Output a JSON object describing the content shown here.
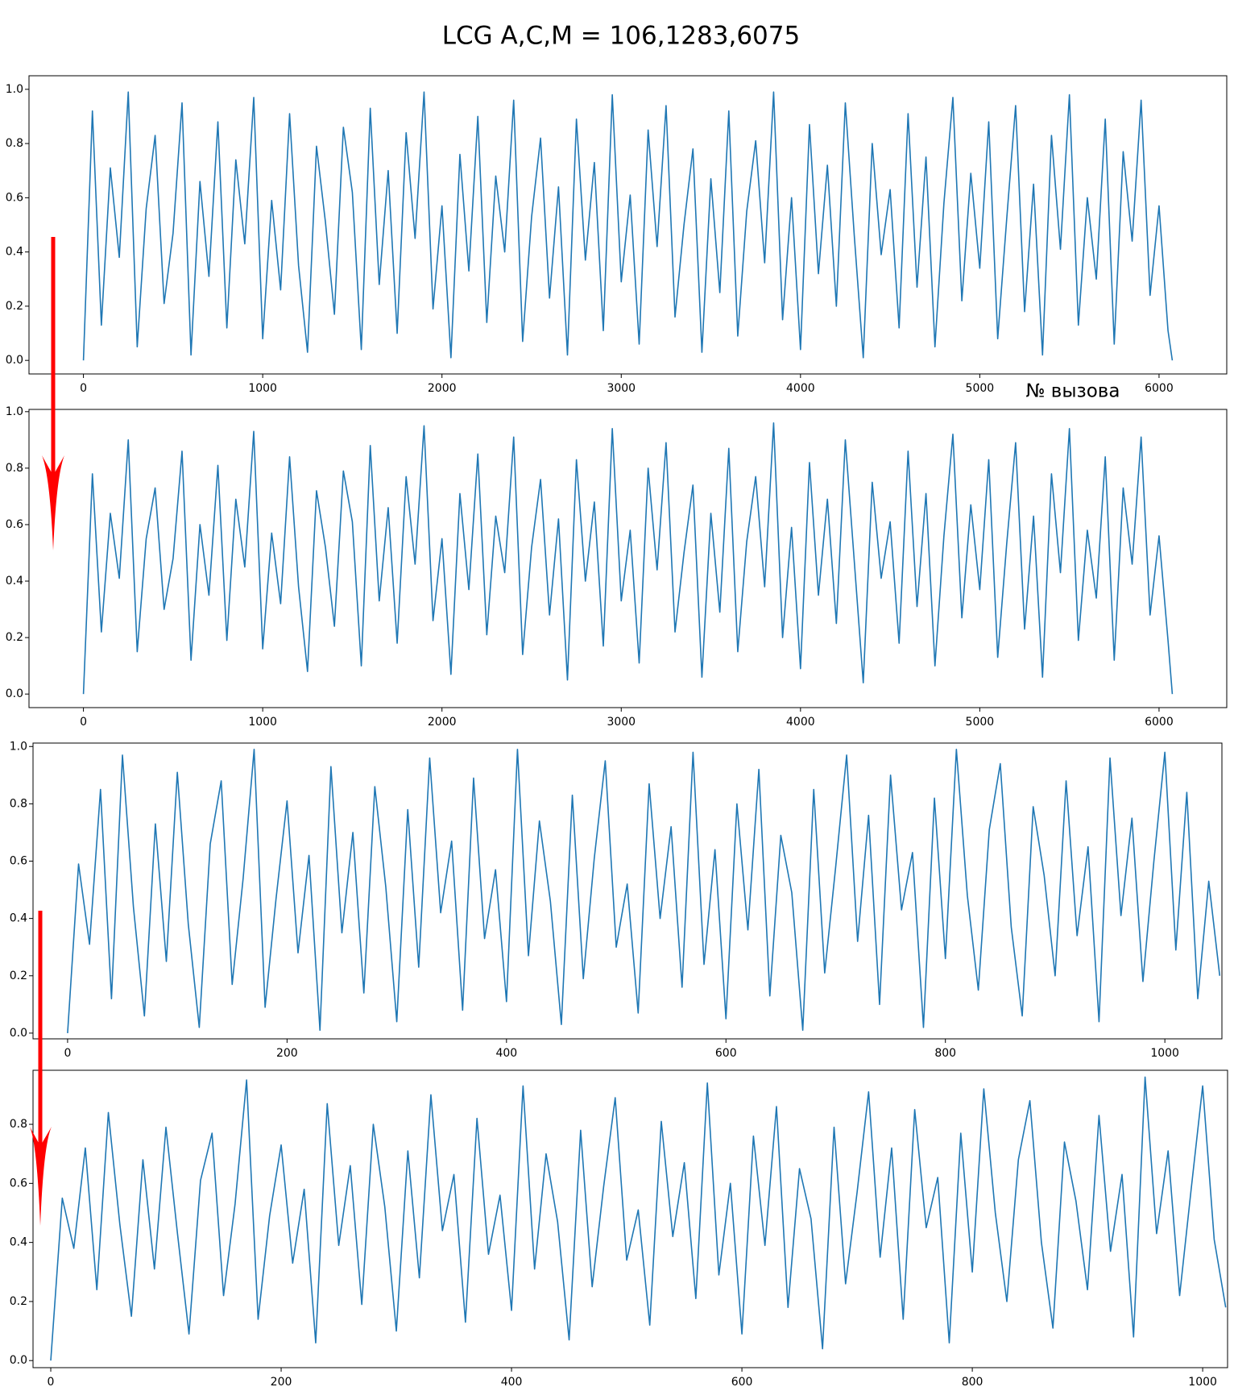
{
  "title": "LCG  A,C,M = 106,1283,6075",
  "chart_data": [
    {
      "type": "line",
      "xlabel": "№ вызова",
      "x": [
        0,
        50,
        100,
        150,
        200,
        250,
        300,
        350,
        400,
        450,
        500,
        550,
        600,
        650,
        700,
        750,
        800,
        850,
        900,
        950,
        1000,
        1050,
        1100,
        1150,
        1200,
        1250,
        1300,
        1350,
        1400,
        1450,
        1500,
        1550,
        1600,
        1650,
        1700,
        1750,
        1800,
        1850,
        1900,
        1950,
        2000,
        2050,
        2100,
        2150,
        2200,
        2250,
        2300,
        2350,
        2400,
        2450,
        2500,
        2550,
        2600,
        2650,
        2700,
        2750,
        2800,
        2850,
        2900,
        2950,
        3000,
        3050,
        3100,
        3150,
        3200,
        3250,
        3300,
        3350,
        3400,
        3450,
        3500,
        3550,
        3600,
        3650,
        3700,
        3750,
        3800,
        3850,
        3900,
        3950,
        4000,
        4050,
        4100,
        4150,
        4200,
        4250,
        4300,
        4350,
        4400,
        4450,
        4500,
        4550,
        4600,
        4650,
        4700,
        4750,
        4800,
        4850,
        4900,
        4950,
        5000,
        5050,
        5100,
        5150,
        5200,
        5250,
        5300,
        5350,
        5400,
        5450,
        5500,
        5550,
        5600,
        5650,
        5700,
        5750,
        5800,
        5850,
        5900,
        5950,
        6000,
        6050,
        6074
      ],
      "series": [
        {
          "color": "#1f77b4",
          "values": [
            0.0,
            0.92,
            0.13,
            0.71,
            0.38,
            0.99,
            0.05,
            0.56,
            0.83,
            0.21,
            0.47,
            0.95,
            0.02,
            0.66,
            0.31,
            0.88,
            0.12,
            0.74,
            0.43,
            0.97,
            0.08,
            0.59,
            0.26,
            0.91,
            0.35,
            0.03,
            0.79,
            0.51,
            0.17,
            0.86,
            0.62,
            0.04,
            0.93,
            0.28,
            0.7,
            0.1,
            0.84,
            0.45,
            0.99,
            0.19,
            0.57,
            0.01,
            0.76,
            0.33,
            0.9,
            0.14,
            0.68,
            0.4,
            0.96,
            0.07,
            0.53,
            0.82,
            0.23,
            0.64,
            0.02,
            0.89,
            0.37,
            0.73,
            0.11,
            0.98,
            0.29,
            0.61,
            0.06,
            0.85,
            0.42,
            0.94,
            0.16,
            0.5,
            0.78,
            0.03,
            0.67,
            0.25,
            0.92,
            0.09,
            0.55,
            0.81,
            0.36,
            0.99,
            0.15,
            0.6,
            0.04,
            0.87,
            0.32,
            0.72,
            0.2,
            0.95,
            0.46,
            0.01,
            0.8,
            0.39,
            0.63,
            0.12,
            0.91,
            0.27,
            0.75,
            0.05,
            0.58,
            0.97,
            0.22,
            0.69,
            0.34,
            0.88,
            0.08,
            0.52,
            0.94,
            0.18,
            0.65,
            0.02,
            0.83,
            0.41,
            0.98,
            0.13,
            0.6,
            0.3,
            0.89,
            0.06,
            0.77,
            0.44,
            0.96,
            0.24,
            0.57,
            0.11,
            0.0
          ]
        }
      ],
      "xlim": [
        -303.7,
        6377.7
      ],
      "ylim": [
        -0.05,
        1.05
      ],
      "xticks": [
        0,
        1000,
        2000,
        3000,
        4000,
        5000,
        6000
      ],
      "yticks": [
        {
          "value": 0,
          "label": "0.0"
        },
        {
          "value": 0.2,
          "label": "0.2"
        },
        {
          "value": 0.4,
          "label": "0.4"
        },
        {
          "value": 0.6,
          "label": "0.6"
        },
        {
          "value": 0.8,
          "label": "0.8"
        },
        {
          "value": 1,
          "label": "1.0"
        }
      ]
    },
    {
      "type": "line",
      "x": [
        0,
        50,
        100,
        150,
        200,
        250,
        300,
        350,
        400,
        450,
        500,
        550,
        600,
        650,
        700,
        750,
        800,
        850,
        900,
        950,
        1000,
        1050,
        1100,
        1150,
        1200,
        1250,
        1300,
        1350,
        1400,
        1450,
        1500,
        1550,
        1600,
        1650,
        1700,
        1750,
        1800,
        1850,
        1900,
        1950,
        2000,
        2050,
        2100,
        2150,
        2200,
        2250,
        2300,
        2350,
        2400,
        2450,
        2500,
        2550,
        2600,
        2650,
        2700,
        2750,
        2800,
        2850,
        2900,
        2950,
        3000,
        3050,
        3100,
        3150,
        3200,
        3250,
        3300,
        3350,
        3400,
        3450,
        3500,
        3550,
        3600,
        3650,
        3700,
        3750,
        3800,
        3850,
        3900,
        3950,
        4000,
        4050,
        4100,
        4150,
        4200,
        4250,
        4300,
        4350,
        4400,
        4450,
        4500,
        4550,
        4600,
        4650,
        4700,
        4750,
        4800,
        4850,
        4900,
        4950,
        5000,
        5050,
        5100,
        5150,
        5200,
        5250,
        5300,
        5350,
        5400,
        5450,
        5500,
        5550,
        5600,
        5650,
        5700,
        5750,
        5800,
        5850,
        5900,
        5950,
        6000,
        6050,
        6074
      ],
      "series": [
        {
          "color": "#1f77b4",
          "values": [
            0.0,
            0.78,
            0.22,
            0.64,
            0.41,
            0.9,
            0.15,
            0.55,
            0.73,
            0.3,
            0.48,
            0.86,
            0.12,
            0.6,
            0.35,
            0.81,
            0.19,
            0.69,
            0.45,
            0.93,
            0.16,
            0.57,
            0.32,
            0.84,
            0.38,
            0.08,
            0.72,
            0.52,
            0.24,
            0.79,
            0.61,
            0.1,
            0.88,
            0.33,
            0.66,
            0.18,
            0.77,
            0.46,
            0.95,
            0.26,
            0.55,
            0.07,
            0.71,
            0.37,
            0.85,
            0.21,
            0.63,
            0.43,
            0.91,
            0.14,
            0.52,
            0.76,
            0.28,
            0.62,
            0.05,
            0.83,
            0.4,
            0.68,
            0.17,
            0.94,
            0.33,
            0.58,
            0.11,
            0.8,
            0.44,
            0.89,
            0.22,
            0.5,
            0.74,
            0.06,
            0.64,
            0.29,
            0.87,
            0.15,
            0.54,
            0.77,
            0.38,
            0.96,
            0.2,
            0.59,
            0.09,
            0.82,
            0.35,
            0.69,
            0.25,
            0.9,
            0.47,
            0.04,
            0.75,
            0.41,
            0.61,
            0.18,
            0.86,
            0.31,
            0.71,
            0.1,
            0.56,
            0.92,
            0.27,
            0.67,
            0.37,
            0.83,
            0.13,
            0.53,
            0.89,
            0.23,
            0.63,
            0.06,
            0.78,
            0.43,
            0.94,
            0.19,
            0.58,
            0.34,
            0.84,
            0.12,
            0.73,
            0.46,
            0.91,
            0.28,
            0.56,
            0.19,
            0.0
          ]
        }
      ],
      "xlim": [
        -303.7,
        6377.7
      ],
      "ylim": [
        -0.048,
        1.008
      ],
      "xticks": [
        0,
        1000,
        2000,
        3000,
        4000,
        5000,
        6000
      ],
      "yticks": [
        {
          "value": 0,
          "label": "0.0"
        },
        {
          "value": 0.2,
          "label": "0.2"
        },
        {
          "value": 0.4,
          "label": "0.4"
        },
        {
          "value": 0.6,
          "label": "0.6"
        },
        {
          "value": 0.8,
          "label": "0.8"
        },
        {
          "value": 1,
          "label": "1.0"
        }
      ]
    },
    {
      "type": "line",
      "x": [
        0,
        10,
        20,
        30,
        40,
        50,
        60,
        70,
        80,
        90,
        100,
        110,
        120,
        130,
        140,
        150,
        160,
        170,
        180,
        190,
        200,
        210,
        220,
        230,
        240,
        250,
        260,
        270,
        280,
        290,
        300,
        310,
        320,
        330,
        340,
        350,
        360,
        370,
        380,
        390,
        400,
        410,
        420,
        430,
        440,
        450,
        460,
        470,
        480,
        490,
        500,
        510,
        520,
        530,
        540,
        550,
        560,
        570,
        580,
        590,
        600,
        610,
        620,
        630,
        640,
        650,
        660,
        670,
        680,
        690,
        700,
        710,
        720,
        730,
        740,
        750,
        760,
        770,
        780,
        790,
        800,
        810,
        820,
        830,
        840,
        850,
        860,
        870,
        880,
        890,
        900,
        910,
        920,
        930,
        940,
        950,
        960,
        970,
        980,
        990,
        1000,
        1010,
        1020,
        1030,
        1040,
        1050
      ],
      "series": [
        {
          "color": "#1f77b4",
          "values": [
            0.0,
            0.59,
            0.31,
            0.85,
            0.12,
            0.97,
            0.44,
            0.06,
            0.73,
            0.25,
            0.91,
            0.38,
            0.02,
            0.66,
            0.88,
            0.17,
            0.54,
            0.99,
            0.09,
            0.47,
            0.81,
            0.28,
            0.62,
            0.01,
            0.93,
            0.35,
            0.7,
            0.14,
            0.86,
            0.51,
            0.04,
            0.78,
            0.23,
            0.96,
            0.42,
            0.67,
            0.08,
            0.89,
            0.33,
            0.57,
            0.11,
            0.99,
            0.27,
            0.74,
            0.46,
            0.03,
            0.83,
            0.19,
            0.61,
            0.95,
            0.3,
            0.52,
            0.07,
            0.87,
            0.4,
            0.72,
            0.16,
            0.98,
            0.24,
            0.64,
            0.05,
            0.8,
            0.36,
            0.92,
            0.13,
            0.69,
            0.49,
            0.01,
            0.85,
            0.21,
            0.58,
            0.97,
            0.32,
            0.76,
            0.1,
            0.9,
            0.43,
            0.63,
            0.02,
            0.82,
            0.26,
            0.99,
            0.48,
            0.15,
            0.71,
            0.94,
            0.37,
            0.06,
            0.79,
            0.55,
            0.2,
            0.88,
            0.34,
            0.65,
            0.04,
            0.96,
            0.41,
            0.75,
            0.18,
            0.6,
            0.98,
            0.29,
            0.84,
            0.12,
            0.53,
            0.2
          ]
        }
      ],
      "xlim": [
        -31.5,
        1052
      ],
      "ylim": [
        -0.02,
        1.012
      ],
      "xticks": [
        0,
        200,
        400,
        600,
        800,
        1000
      ],
      "yticks": [
        {
          "value": 0,
          "label": "0.0"
        },
        {
          "value": 0.2,
          "label": "0.2"
        },
        {
          "value": 0.4,
          "label": "0.4"
        },
        {
          "value": 0.6,
          "label": "0.6"
        },
        {
          "value": 0.8,
          "label": "0.8"
        },
        {
          "value": 1,
          "label": "1.0"
        }
      ]
    },
    {
      "type": "line",
      "x": [
        0,
        10,
        20,
        30,
        40,
        50,
        60,
        70,
        80,
        90,
        100,
        110,
        120,
        130,
        140,
        150,
        160,
        170,
        180,
        190,
        200,
        210,
        220,
        230,
        240,
        250,
        260,
        270,
        280,
        290,
        300,
        310,
        320,
        330,
        340,
        350,
        360,
        370,
        380,
        390,
        400,
        410,
        420,
        430,
        440,
        450,
        460,
        470,
        480,
        490,
        500,
        510,
        520,
        530,
        540,
        550,
        560,
        570,
        580,
        590,
        600,
        610,
        620,
        630,
        640,
        650,
        660,
        670,
        680,
        690,
        700,
        710,
        720,
        730,
        740,
        750,
        760,
        770,
        780,
        790,
        800,
        810,
        820,
        830,
        840,
        850,
        860,
        870,
        880,
        890,
        900,
        910,
        920,
        930,
        940,
        950,
        960,
        970,
        980,
        990,
        1000,
        1010,
        1020
      ],
      "series": [
        {
          "color": "#1f77b4",
          "values": [
            0.0,
            0.55,
            0.38,
            0.72,
            0.24,
            0.84,
            0.46,
            0.15,
            0.68,
            0.31,
            0.79,
            0.43,
            0.09,
            0.61,
            0.77,
            0.22,
            0.53,
            0.95,
            0.14,
            0.49,
            0.73,
            0.33,
            0.58,
            0.06,
            0.87,
            0.39,
            0.66,
            0.19,
            0.8,
            0.52,
            0.1,
            0.71,
            0.28,
            0.9,
            0.44,
            0.63,
            0.13,
            0.82,
            0.36,
            0.56,
            0.17,
            0.93,
            0.31,
            0.7,
            0.47,
            0.07,
            0.78,
            0.25,
            0.59,
            0.89,
            0.34,
            0.51,
            0.12,
            0.81,
            0.42,
            0.67,
            0.21,
            0.94,
            0.29,
            0.6,
            0.09,
            0.76,
            0.39,
            0.86,
            0.18,
            0.65,
            0.48,
            0.04,
            0.79,
            0.26,
            0.57,
            0.91,
            0.35,
            0.72,
            0.14,
            0.85,
            0.45,
            0.62,
            0.06,
            0.77,
            0.3,
            0.92,
            0.5,
            0.2,
            0.68,
            0.88,
            0.4,
            0.11,
            0.74,
            0.54,
            0.24,
            0.83,
            0.37,
            0.63,
            0.08,
            0.96,
            0.43,
            0.71,
            0.22,
            0.58,
            0.93,
            0.41,
            0.18
          ]
        }
      ],
      "xlim": [
        -15.4,
        1021.6
      ],
      "ylim": [
        -0.024,
        0.983
      ],
      "xticks": [
        0,
        200,
        400,
        600,
        800,
        1000
      ],
      "yticks": [
        {
          "value": 0,
          "label": "0.0"
        },
        {
          "value": 0.2,
          "label": "0.2"
        },
        {
          "value": 0.4,
          "label": "0.4"
        },
        {
          "value": 0.6,
          "label": "0.6"
        },
        {
          "value": 0.8,
          "label": "0.8"
        }
      ]
    }
  ]
}
